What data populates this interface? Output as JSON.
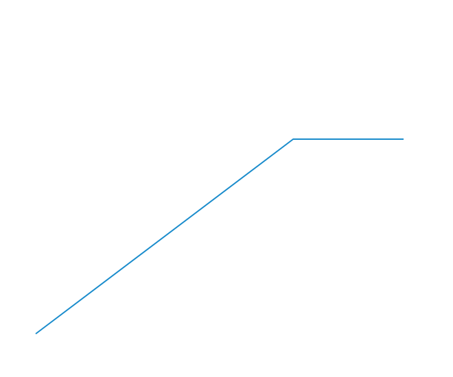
{
  "chart_data": {
    "type": "line",
    "title": "",
    "xlabel": "",
    "ylabel": "",
    "grid": false,
    "legend": "none",
    "x": [
      0,
      0.7,
      1
    ],
    "series": [
      {
        "values": [
          0,
          1,
          1
        ],
        "color": "#1a8ccc"
      }
    ],
    "xlim": [
      0,
      1
    ],
    "ylim": [
      0,
      1
    ]
  }
}
